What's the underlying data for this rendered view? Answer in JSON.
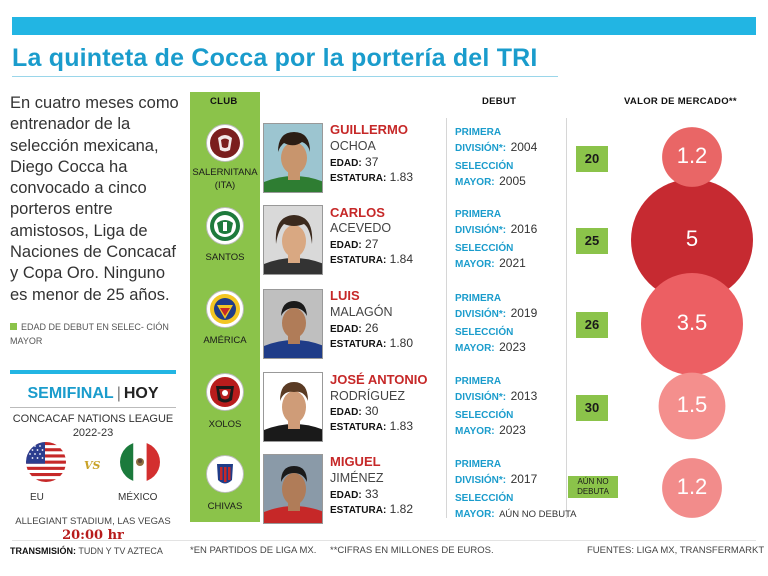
{
  "title": "La quinteta de Cocca por la portería del TRI",
  "intro": "En cuatro meses como entrenador de la selección mexicana, Diego Cocca ha convocado a cinco porteros entre amistosos, Liga de Naciones de Concacaf y Copa Oro. Ninguno es menor de 25 años.",
  "legend": "Edad de debut en selec- ción mayor",
  "colors": {
    "accent": "#1a9ccc",
    "green": "#8bc34a",
    "red": "#c62828"
  },
  "match": {
    "stage": "SEMIFINAL",
    "when": "HOY",
    "league_line1": "CONCACAF NATIONS LEAGUE",
    "league_line2": "2022-23",
    "vs": "VS",
    "home": "EU",
    "away": "MÉXICO",
    "venue": "ALLEGIANT STADIUM, LAS VEGAS",
    "time": "20:00 hr",
    "tv_label": "TRANSMISIÓN:",
    "tv": "TUDN Y TV AZTECA"
  },
  "headers": {
    "club": "CLUB",
    "debut": "DEBUT",
    "valor": "VALOR DE MERCADO**"
  },
  "labels": {
    "edad": "EDAD:",
    "estatura": "ESTATURA:",
    "primera": "PRIMERA",
    "division": "DIVISIÓN*:",
    "seleccion": "SELECCIÓN",
    "mayor": "MAYOR:"
  },
  "players": [
    {
      "club": "SALERNITANA (ITA)",
      "first": "GUILLERMO",
      "last": "OCHOA",
      "edad": "37",
      "estatura": "1.83",
      "primera": "2004",
      "seleccion": "2005",
      "debut_age": "20",
      "valor": "1.2",
      "market_value": 1.2
    },
    {
      "club": "SANTOS",
      "first": "CARLOS",
      "last": "ACEVEDO",
      "edad": "27",
      "estatura": "1.84",
      "primera": "2016",
      "seleccion": "2021",
      "debut_age": "25",
      "valor": "5",
      "market_value": 5
    },
    {
      "club": "AMÉRICA",
      "first": "LUIS",
      "last": "MALAGÓN",
      "edad": "26",
      "estatura": "1.80",
      "primera": "2019",
      "seleccion": "2023",
      "debut_age": "26",
      "valor": "3.5",
      "market_value": 3.5
    },
    {
      "club": "XOLOS",
      "first": "JOSÉ ANTONIO",
      "last": "RODRÍGUEZ",
      "edad": "30",
      "estatura": "1.83",
      "primera": "2013",
      "seleccion": "2023",
      "debut_age": "30",
      "valor": "1.5",
      "market_value": 1.5
    },
    {
      "club": "CHIVAS",
      "first": "MIGUEL",
      "last": "JIMÉNEZ",
      "edad": "33",
      "estatura": "1.82",
      "primera": "2017",
      "seleccion": "AÚN NO DEBUTA",
      "debut_age": "AÚN NO DEBUTA",
      "valor": "1.2",
      "market_value": 1.2
    }
  ],
  "footnotes": {
    "f1": "*EN PARTIDOS DE LIGA MX.",
    "f2": "**CIFRAS EN MILLONES DE EUROS.",
    "f3": "FUENTES: LIGA MX, TRANSFERMARKT"
  }
}
